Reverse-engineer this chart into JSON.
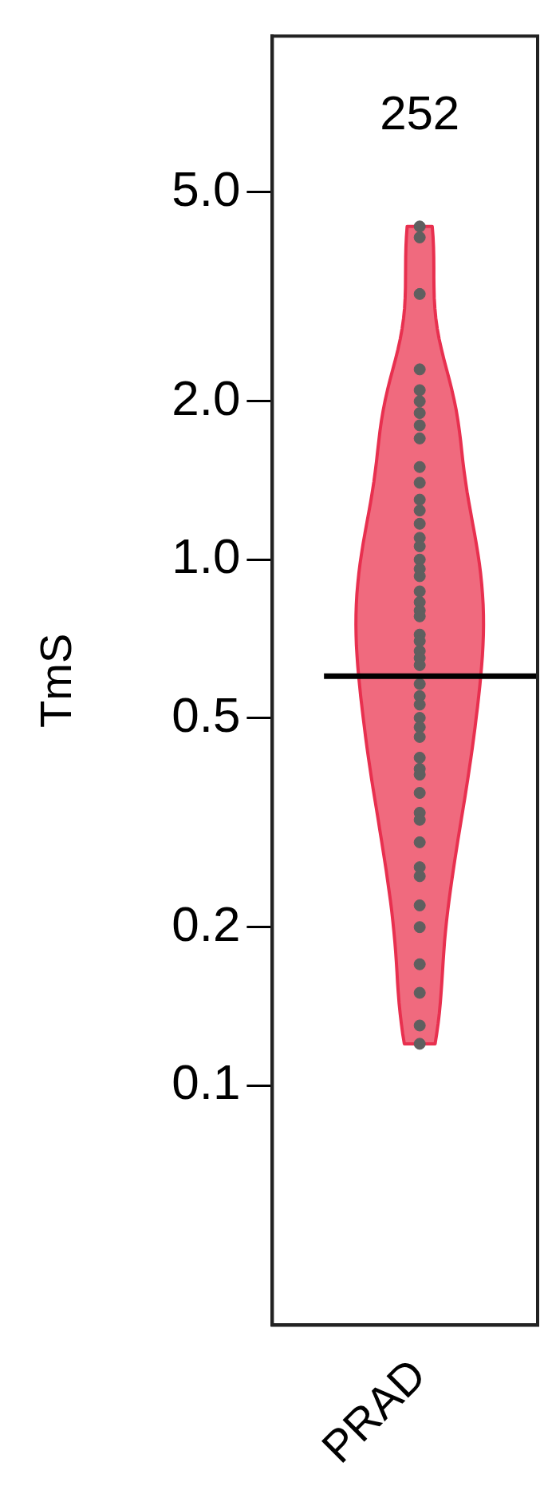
{
  "chart_data": {
    "type": "scatter",
    "ylabel": "TmS",
    "categories": [
      "PRAD"
    ],
    "colors": [
      "#f06a7e"
    ],
    "series": [
      {
        "color": "#5f5f5f",
        "x": [
          "PRAD",
          "PRAD",
          "PRAD",
          "PRAD",
          "PRAD",
          "PRAD",
          "PRAD",
          "PRAD",
          "PRAD",
          "PRAD",
          "PRAD",
          "PRAD",
          "PRAD",
          "PRAD",
          "PRAD",
          "PRAD",
          "PRAD",
          "PRAD",
          "PRAD",
          "PRAD",
          "PRAD",
          "PRAD",
          "PRAD",
          "PRAD",
          "PRAD",
          "PRAD",
          "PRAD",
          "PRAD",
          "PRAD",
          "PRAD",
          "PRAD",
          "PRAD",
          "PRAD",
          "PRAD",
          "PRAD",
          "PRAD",
          "PRAD",
          "PRAD",
          "PRAD",
          "PRAD",
          "PRAD",
          "PRAD",
          "PRAD",
          "PRAD",
          "PRAD",
          "PRAD",
          "PRAD",
          "PRAD",
          "PRAD"
        ],
        "values": [
          4.3,
          4.1,
          3.2,
          2.3,
          2.1,
          2.0,
          1.9,
          1.8,
          1.7,
          1.5,
          1.4,
          1.3,
          1.24,
          1.17,
          1.1,
          1.06,
          1.0,
          0.96,
          0.93,
          0.87,
          0.83,
          0.8,
          0.78,
          0.72,
          0.7,
          0.67,
          0.65,
          0.63,
          0.58,
          0.55,
          0.53,
          0.5,
          0.48,
          0.46,
          0.42,
          0.4,
          0.39,
          0.36,
          0.33,
          0.32,
          0.29,
          0.26,
          0.25,
          0.22,
          0.2,
          0.17,
          0.15,
          0.13,
          0.12
        ]
      }
    ],
    "log": true,
    "ylim": [
      0.035,
      9.9
    ],
    "yticks": [
      0.1,
      0.2,
      0.5,
      {
        "value": 1,
        "label": "1.0"
      },
      {
        "value": 2,
        "label": "2.0"
      },
      {
        "value": 5,
        "label": "5.0"
      }
    ],
    "ref_lines": [
      {
        "axis": "y",
        "value": 0.6,
        "color": "#000000"
      }
    ],
    "annotations": [
      "252"
    ],
    "grid": false,
    "legend": false,
    "marker": "circle"
  }
}
